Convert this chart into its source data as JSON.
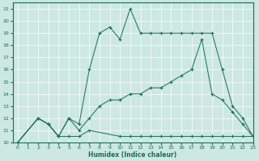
{
  "xlabel": "Humidex (Indice chaleur)",
  "xlim": [
    -0.5,
    23
  ],
  "ylim": [
    10,
    21.5
  ],
  "xticks": [
    0,
    1,
    2,
    3,
    4,
    5,
    6,
    7,
    8,
    9,
    10,
    11,
    12,
    13,
    14,
    15,
    16,
    17,
    18,
    19,
    20,
    21,
    22,
    23
  ],
  "yticks": [
    10,
    11,
    12,
    13,
    14,
    15,
    16,
    17,
    18,
    19,
    20,
    21
  ],
  "bg_color": "#cce8e0",
  "grid_color": "#b0d8ce",
  "line_color": "#1a6b5a",
  "line1_x": [
    0,
    2,
    3,
    4,
    5,
    6,
    7,
    10,
    11,
    12,
    13,
    14,
    15,
    16,
    17,
    18,
    19,
    20,
    21,
    22,
    23
  ],
  "line1_y": [
    10,
    12,
    11.5,
    10.5,
    10.5,
    10.5,
    11,
    10.5,
    10.5,
    10.5,
    10.5,
    10.5,
    10.5,
    10.5,
    10.5,
    10.5,
    10.5,
    10.5,
    10.5,
    10.5,
    10.5
  ],
  "line2_x": [
    0,
    2,
    3,
    4,
    5,
    6,
    7,
    8,
    9,
    10,
    11,
    12,
    13,
    14,
    15,
    16,
    17,
    18,
    19,
    20,
    21,
    22,
    23
  ],
  "line2_y": [
    10,
    12,
    11.5,
    10.5,
    12,
    11.5,
    16,
    19,
    19.5,
    18.5,
    21,
    19,
    19,
    19,
    19,
    19,
    19,
    19,
    19,
    16,
    13,
    12,
    10.5
  ],
  "line3_x": [
    0,
    2,
    3,
    4,
    5,
    6,
    7,
    8,
    9,
    10,
    11,
    12,
    13,
    14,
    15,
    16,
    17,
    18,
    19,
    20,
    21,
    22,
    23
  ],
  "line3_y": [
    10,
    12,
    11.5,
    10.5,
    12,
    11,
    12,
    13,
    13.5,
    13.5,
    14,
    14,
    14.5,
    14.5,
    15,
    15.5,
    16,
    18.5,
    14,
    13.5,
    12.5,
    11.5,
    10.5
  ]
}
